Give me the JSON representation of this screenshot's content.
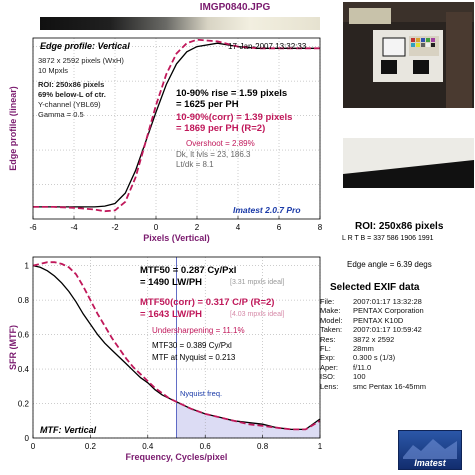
{
  "title": "IMGP0840.JPG",
  "colors": {
    "black_series": "#000000",
    "corr_series": "#c0185a",
    "accent_text": "#7a1a6e",
    "blue_text": "#1a3aa8"
  },
  "edge_panel": {
    "subtitle": "Edge profile: Vertical",
    "date": "17-Jan-2007 13:32:33",
    "info": [
      "3872 x 2592 pixels (WxH)",
      "10 Mpxls",
      "ROI: 250x86 pixels",
      "69% below-L of ctr.",
      "Y-channel (YBL69)",
      "Gamma = 0.5"
    ],
    "rise_line1": "10-90% rise = 1.59 pixels",
    "rise_line2": "= 1625 per PH",
    "corr_line1": "10-90%(corr) = 1.39 pixels",
    "corr_line2": "= 1869 per PH  (R=2)",
    "overshoot": "Overshoot = 2.89%",
    "dk": "Dk, lt lvls = 23, 186.3",
    "ltdk": "Lt/dk = 8.1",
    "version": "Imatest 2.0.7 Pro"
  },
  "mtf_panel": {
    "subtitle": "MTF: Vertical",
    "mtf50_line1": "MTF50 = 0.287 Cy/Pxl",
    "mtf50_line2": "= 1490 LW/PH",
    "mtf50_ideal": "[3.31 mpxls ideal]",
    "mtf50c_line1": "MTF50(corr) = 0.317 C/P  (R=2)",
    "mtf50c_line2": "= 1643 LW/PH",
    "mtf50c_ideal": "[4.03 mpxls ideal]",
    "undersharp": "Undersharpening = 11.1%",
    "mtf30": "MTF30 = 0.389 Cy/Pxl",
    "nyq_val": "MTF at Nyquist = 0.213",
    "nyquist_label": "Nyquist freq."
  },
  "roi_box": {
    "roi": "ROI: 250x86 pixels",
    "lrtb": "L R T B = 337 586  1906 1991",
    "angle": "Edge angle = 6.39 degs"
  },
  "exif": {
    "title": "Selected EXIF data",
    "rows": [
      {
        "k": "File:",
        "v": "2007:01:17 13:32:28"
      },
      {
        "k": "Make:",
        "v": "PENTAX Corporation"
      },
      {
        "k": "Model:",
        "v": "PENTAX K10D"
      },
      {
        "k": "Taken:",
        "v": "2007:01:17 10:59:42"
      },
      {
        "k": "Res:",
        "v": "3872 x 2592"
      },
      {
        "k": "FL:",
        "v": "28mm"
      },
      {
        "k": "Exp:",
        "v": "0.300 s  (1/3)"
      },
      {
        "k": "Aper:",
        "v": "f/11.0"
      },
      {
        "k": "ISO:",
        "v": "100"
      },
      {
        "k": "Lens:",
        "v": "smc Pentax 16-45mm"
      }
    ]
  },
  "logo_text": "Imatest",
  "chart_data": [
    {
      "type": "line",
      "title": "Edge profile: Vertical",
      "xlabel": "Pixels (Vertical)",
      "ylabel": "Edge profile (linear)",
      "xlim": [
        -6,
        8
      ],
      "ylim": [
        0,
        1.05
      ],
      "xticks": [
        -6,
        -4,
        -2,
        0,
        2,
        4,
        6,
        8
      ],
      "grid": true,
      "series": [
        {
          "style": "solid",
          "x": [
            -6,
            -5,
            -4,
            -3,
            -2.5,
            -2,
            -1.5,
            -1,
            -0.5,
            0,
            0.5,
            1,
            1.5,
            2,
            3,
            4,
            5,
            6,
            7,
            8
          ],
          "y": [
            0.07,
            0.07,
            0.07,
            0.07,
            0.075,
            0.09,
            0.15,
            0.28,
            0.45,
            0.62,
            0.78,
            0.9,
            0.97,
            1.0,
            1.02,
            1.0,
            0.99,
            0.99,
            0.99,
            0.99
          ]
        },
        {
          "style": "dashed",
          "x": [
            -6,
            -5,
            -4,
            -3,
            -2.5,
            -2,
            -1.5,
            -1,
            -0.5,
            0,
            0.5,
            1,
            1.5,
            2,
            3,
            4,
            5,
            6,
            7,
            8
          ],
          "y": [
            0.07,
            0.07,
            0.065,
            0.055,
            0.045,
            0.05,
            0.1,
            0.24,
            0.45,
            0.66,
            0.84,
            0.96,
            1.02,
            1.04,
            1.03,
            1.0,
            0.99,
            0.99,
            0.99,
            0.99
          ]
        }
      ]
    },
    {
      "type": "line",
      "title": "MTF: Vertical",
      "xlabel": "Frequency, Cycles/pixel",
      "ylabel": "SFR (MTF)",
      "xlim": [
        0,
        1
      ],
      "ylim": [
        0,
        1.05
      ],
      "xticks": [
        0,
        0.2,
        0.4,
        0.6,
        0.8,
        1
      ],
      "yticks": [
        0,
        0.2,
        0.4,
        0.6,
        0.8,
        1
      ],
      "grid": true,
      "nyquist": 0.5,
      "series": [
        {
          "style": "solid",
          "x": [
            0,
            0.025,
            0.05,
            0.075,
            0.1,
            0.125,
            0.15,
            0.175,
            0.2,
            0.225,
            0.25,
            0.275,
            0.3,
            0.325,
            0.35,
            0.375,
            0.4,
            0.425,
            0.45,
            0.475,
            0.5,
            0.55,
            0.6,
            0.65,
            0.7,
            0.75,
            0.8,
            0.85,
            0.9,
            0.95,
            1.0
          ],
          "y": [
            1.0,
            0.99,
            0.97,
            0.94,
            0.9,
            0.85,
            0.79,
            0.72,
            0.66,
            0.6,
            0.55,
            0.51,
            0.47,
            0.43,
            0.39,
            0.35,
            0.32,
            0.28,
            0.25,
            0.23,
            0.21,
            0.17,
            0.14,
            0.12,
            0.1,
            0.09,
            0.08,
            0.06,
            0.05,
            0.05,
            0.11
          ]
        },
        {
          "style": "dashed",
          "x": [
            0,
            0.025,
            0.05,
            0.075,
            0.1,
            0.125,
            0.15,
            0.175,
            0.2,
            0.225,
            0.25,
            0.275,
            0.3,
            0.325,
            0.35,
            0.375,
            0.4,
            0.425,
            0.45,
            0.475,
            0.5,
            0.55,
            0.6,
            0.65,
            0.7,
            0.75,
            0.8,
            0.85,
            0.9,
            0.95,
            1.0
          ],
          "y": [
            1.0,
            1.01,
            1.02,
            1.02,
            1.01,
            0.99,
            0.95,
            0.88,
            0.8,
            0.72,
            0.65,
            0.58,
            0.52,
            0.46,
            0.41,
            0.37,
            0.33,
            0.29,
            0.26,
            0.23,
            0.21,
            0.17,
            0.14,
            0.12,
            0.1,
            0.08,
            0.07,
            0.06,
            0.05,
            0.05,
            0.1
          ]
        }
      ]
    }
  ]
}
